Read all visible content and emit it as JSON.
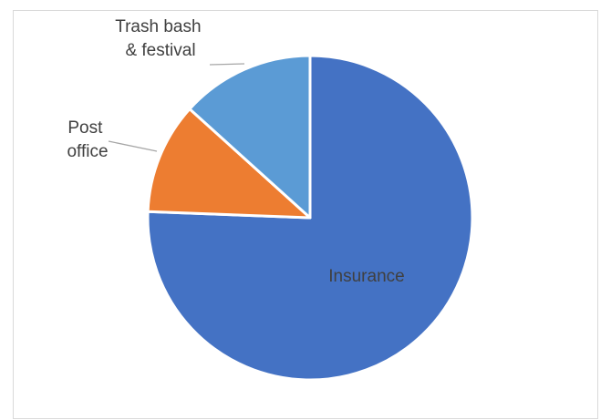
{
  "chart_data": {
    "type": "pie",
    "title": "",
    "start_angle_deg": 0,
    "direction": "clockwise",
    "series": [
      {
        "slices": [
          {
            "label": "Insurance",
            "label_lines": [
              "Insurance"
            ],
            "value": 75.6,
            "color": "#4472C4",
            "label_position": "inside"
          },
          {
            "label": "Post office",
            "label_lines": [
              "Post",
              "office"
            ],
            "value": 11.1,
            "color": "#ED7D31",
            "label_position": "outside"
          },
          {
            "label": "Trash bash & festival",
            "label_lines": [
              "Trash bash",
              "& festival"
            ],
            "value": 13.3,
            "color": "#5B9BD5",
            "label_position": "outside"
          }
        ]
      }
    ],
    "legend": "none"
  }
}
